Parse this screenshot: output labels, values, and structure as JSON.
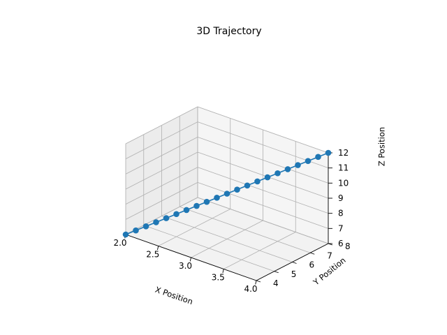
{
  "chart_data": {
    "type": "line",
    "projection": "3d",
    "title": "3D Trajectory",
    "xlabel": "X Position",
    "ylabel": "Y Position",
    "zlabel": "Z Position",
    "grid": true,
    "markers": true,
    "color": "#1f77b4",
    "xlim": [
      2.0,
      4.0
    ],
    "ylim": [
      4.0,
      8.0
    ],
    "zlim": [
      6.0,
      12.0
    ],
    "x_ticks": [
      "2.0",
      "2.5",
      "3.0",
      "3.5",
      "4.0"
    ],
    "y_ticks": [
      "4",
      "5",
      "6",
      "7",
      "8"
    ],
    "z_ticks": [
      "6",
      "7",
      "8",
      "9",
      "10",
      "11",
      "12"
    ],
    "x": [
      2.0,
      2.1,
      2.2,
      2.3,
      2.4,
      2.5,
      2.6,
      2.7,
      2.8,
      2.9,
      3.0,
      3.1,
      3.2,
      3.3,
      3.4,
      3.5,
      3.6,
      3.7,
      3.8,
      3.9,
      4.0
    ],
    "y": [
      4.0,
      4.2,
      4.4,
      4.6,
      4.8,
      5.0,
      5.2,
      5.4,
      5.6,
      5.8,
      6.0,
      6.2,
      6.4,
      6.6,
      6.8,
      7.0,
      7.2,
      7.4,
      7.6,
      7.8,
      8.0
    ],
    "z": [
      6.0,
      6.3,
      6.6,
      6.9,
      7.2,
      7.5,
      7.8,
      8.1,
      8.4,
      8.7,
      9.0,
      9.3,
      9.6,
      9.9,
      10.2,
      10.5,
      10.8,
      11.1,
      11.4,
      11.7,
      12.0
    ]
  }
}
